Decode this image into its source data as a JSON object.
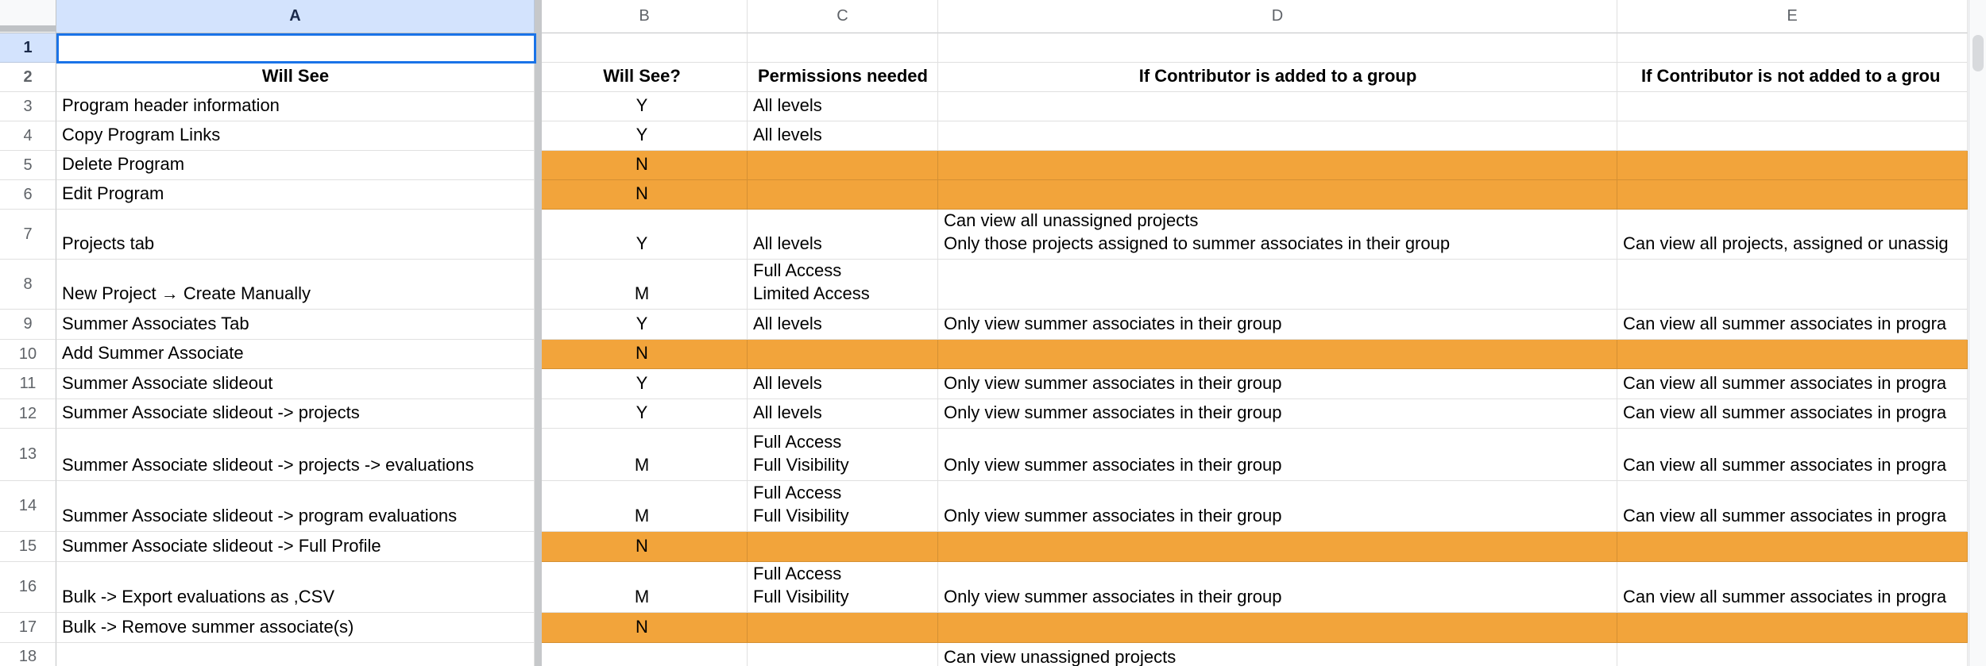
{
  "sheet": {
    "column_headers": [
      "A",
      "B",
      "C",
      "D",
      "E"
    ],
    "selection": {
      "cell": "A1"
    },
    "colors": {
      "highlight_fill": "#F2A43B",
      "selection_border": "#1a73e8",
      "selected_header_bg": "#d3e3fd"
    },
    "rows": [
      {
        "n": 1,
        "a": "",
        "b": "",
        "c": "",
        "d": "",
        "e": ""
      },
      {
        "n": 2,
        "a": "Will See",
        "b": "Will See?",
        "c": "Permissions needed",
        "d": "If Contributor is added to a group",
        "e": "If Contributor is not added to a grou"
      },
      {
        "n": 3,
        "a": "Program header information",
        "b": "Y",
        "c": "All levels",
        "d": "",
        "e": ""
      },
      {
        "n": 4,
        "a": "Copy Program Links",
        "b": "Y",
        "c": "All levels",
        "d": "",
        "e": ""
      },
      {
        "n": 5,
        "a": "Delete Program",
        "b": "N",
        "c": "",
        "d": "",
        "e": "",
        "fill": "orange"
      },
      {
        "n": 6,
        "a": "Edit Program",
        "b": "N",
        "c": "",
        "d": "",
        "e": "",
        "fill": "orange"
      },
      {
        "n": 7,
        "a": "Projects tab",
        "b": "Y",
        "c": "All levels",
        "d": "Can view all unassigned projects\nOnly those projects assigned to summer associates in their group",
        "e": "Can view all projects, assigned or unassig"
      },
      {
        "n": 8,
        "a": "New Project → Create Manually",
        "b": "M",
        "c": "Full Access\nLimited Access",
        "d": "",
        "e": ""
      },
      {
        "n": 9,
        "a": "Summer Associates Tab",
        "b": "Y",
        "c": "All levels",
        "d": "Only view summer associates in their group",
        "e": "Can view all summer associates in progra"
      },
      {
        "n": 10,
        "a": "Add Summer Associate",
        "b": "N",
        "c": "",
        "d": "",
        "e": "",
        "fill": "orange"
      },
      {
        "n": 11,
        "a": "Summer Associate slideout",
        "b": "Y",
        "c": "All levels",
        "d": "Only view summer associates in their group",
        "e": "Can view all summer associates in progra"
      },
      {
        "n": 12,
        "a": "Summer Associate slideout -> projects",
        "b": "Y",
        "c": "All levels",
        "d": "Only view summer associates in their group",
        "e": "Can view all summer associates in progra"
      },
      {
        "n": 13,
        "a": "Summer Associate slideout -> projects -> evaluations",
        "b": "M",
        "c": "Full Access\nFull Visibility",
        "d": "Only view summer associates in their group",
        "e": "Can view all summer associates in progra"
      },
      {
        "n": 14,
        "a": "Summer Associate slideout -> program evaluations",
        "b": "M",
        "c": "Full Access\nFull Visibility",
        "d": "Only view summer associates in their group",
        "e": "Can view all summer associates in progra"
      },
      {
        "n": 15,
        "a": "Summer Associate slideout -> Full Profile",
        "b": "N",
        "c": "",
        "d": "",
        "e": "",
        "fill": "orange"
      },
      {
        "n": 16,
        "a": "Bulk -> Export evaluations as ,CSV",
        "b": "M",
        "c": "Full Access\nFull Visibility",
        "d": "Only view summer associates in their group",
        "e": "Can view all summer associates in progra"
      },
      {
        "n": 17,
        "a": "Bulk -> Remove summer associate(s)",
        "b": "N",
        "c": "",
        "d": "",
        "e": "",
        "fill": "orange"
      },
      {
        "n": 18,
        "a": "",
        "b": "",
        "c": "",
        "d": "Can view unassigned projects",
        "e": ""
      }
    ]
  }
}
